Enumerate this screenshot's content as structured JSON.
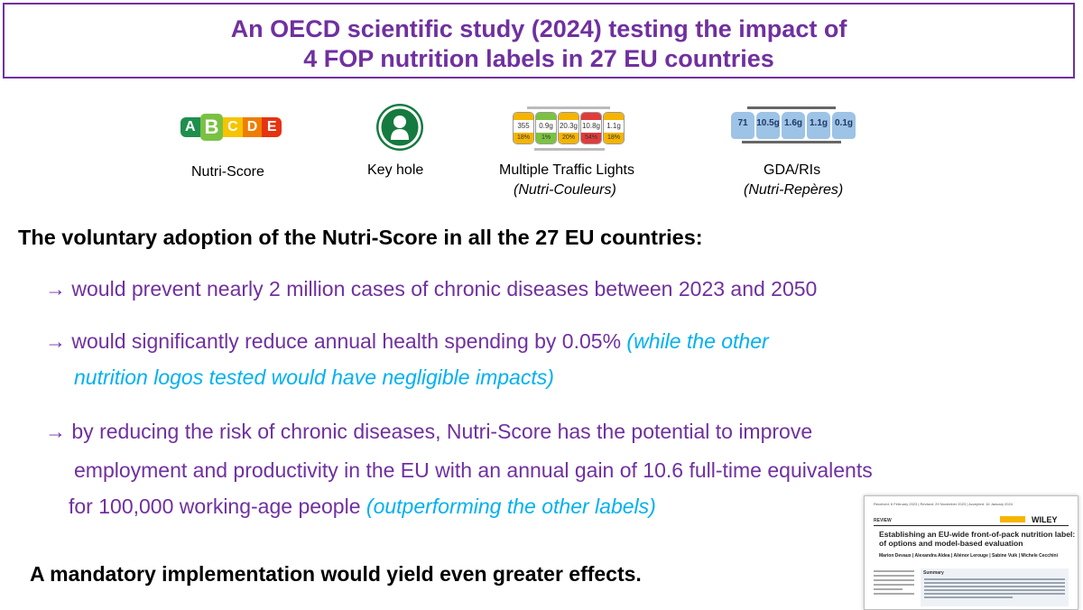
{
  "title": {
    "line1": "An OECD scientific study (2024) testing the impact of",
    "line2": "4 FOP nutrition labels in 27 EU countries"
  },
  "logos": {
    "nutri_score": {
      "caption": "Nutri-Score",
      "letters": [
        "A",
        "B",
        "C",
        "D",
        "E"
      ],
      "colors": [
        "#1e8f4e",
        "#7ac143",
        "#f6c400",
        "#ef7d00",
        "#e63312"
      ]
    },
    "keyhole": {
      "caption": "Key hole",
      "color": "#157a3f"
    },
    "traffic_lights": {
      "caption": "Multiple Traffic Lights",
      "sub": "(Nutri-Couleurs)",
      "cells": [
        {
          "head": "MED",
          "value": "355",
          "pct": "18%",
          "color": "#f4b400"
        },
        {
          "head": "LOW",
          "value": "0.9g",
          "pct": "1%",
          "color": "#7cc242"
        },
        {
          "head": "MED",
          "value": "20.3g",
          "pct": "20%",
          "color": "#f4b400"
        },
        {
          "head": "HIGH",
          "value": "10.8g",
          "pct": "54%",
          "color": "#e03c3c"
        },
        {
          "head": "MED",
          "value": "1.1g",
          "pct": "18%",
          "color": "#f4b400"
        }
      ]
    },
    "gda": {
      "caption": "GDA/RIs",
      "sub": "(Nutri-Repères)",
      "values": [
        "71",
        "10.5g",
        "1.6g",
        "1.1g",
        "0.1g"
      ]
    }
  },
  "heading": "The voluntary adoption of the Nutri-Score in all the 27 EU countries:",
  "bullets": {
    "b1": "→ would prevent nearly 2 million cases of chronic diseases between 2023 and 2050",
    "b2_main": "→ would significantly reduce annual health spending by 0.05% ",
    "b2_note_a": "(while the other",
    "b2_note_b": "nutrition logos tested would have negligible impacts)",
    "b3_l1": "→ by reducing the risk of chronic diseases, Nutri-Score has the potential to improve",
    "b3_l2": "employment and productivity in the EU with an annual gain of 10.6 full-time equivalents",
    "b3_l3_main": "for 100,000 working-age people ",
    "b3_l3_note": "(outperforming the other labels)"
  },
  "footer": "A mandatory implementation would yield even greater effects.",
  "paper": {
    "dates": "Received: 6 February 2023  |  Revised: 29 November 2023  |  Accepted: 16 January 2024",
    "section": "REVIEW",
    "publisher": "WILEY",
    "title_l1": "Establishing an EU-wide front-of-pack nutrition label: Review",
    "title_l2": "of options and model-based evaluation",
    "authors": "Marion Devaux  |  Alexandra Aldea  |  Aliénor Lerouge  |  Sabine Vuik  |  Michele Cecchini",
    "summary_label": "Summary"
  },
  "colors": {
    "purple": "#7030a0",
    "blue": "#00b0f0"
  }
}
